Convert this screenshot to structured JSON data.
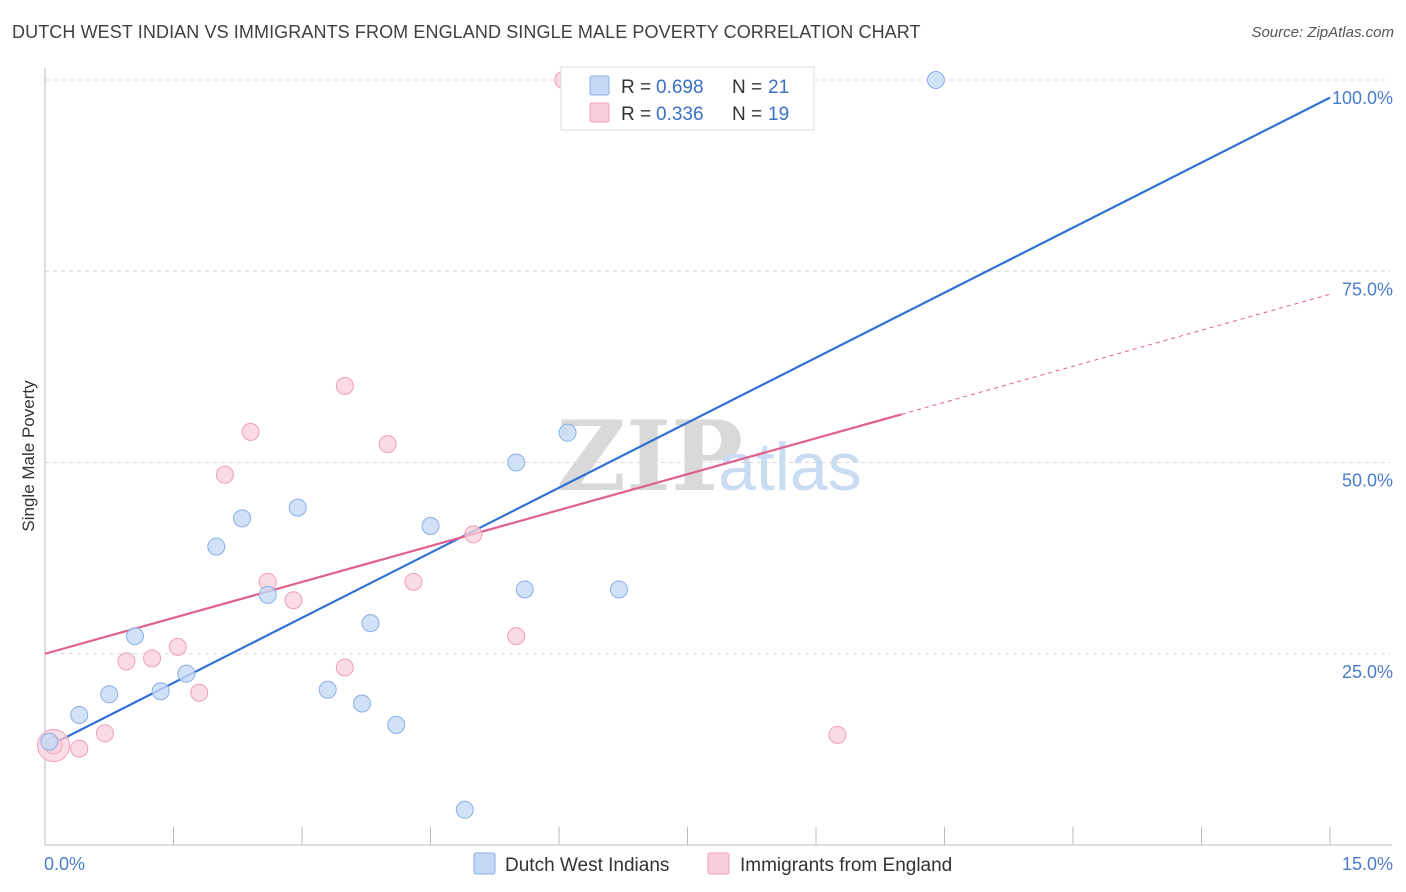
{
  "title": "DUTCH WEST INDIAN VS IMMIGRANTS FROM ENGLAND SINGLE MALE POVERTY CORRELATION CHART",
  "source": "Source: ZipAtlas.com",
  "watermark": {
    "zip": "ZIP",
    "atlas": "atlas"
  },
  "colors": {
    "blue_fill": "#c5d9f5",
    "blue_stroke": "#8ab0e6",
    "blue_line": "#2f72d1",
    "pink_fill": "#f9cfdb",
    "pink_stroke": "#ef9fb6",
    "pink_line": "#e06090",
    "grid": "#d8d8d8",
    "tick_text": "#4a7cc9"
  },
  "legend": {
    "items": [
      {
        "r_label": "R = ",
        "r_value": "0.698",
        "n_label": "N = ",
        "n_value": "21"
      },
      {
        "r_label": "R = ",
        "r_value": "0.336",
        "n_label": "N = ",
        "n_value": "19"
      }
    ]
  },
  "chart_data": {
    "type": "scatter",
    "title": "DUTCH WEST INDIAN VS IMMIGRANTS FROM ENGLAND SINGLE MALE POVERTY CORRELATION CHART",
    "xlabel": "",
    "ylabel": "Single Male Poverty",
    "xlim": [
      0,
      15
    ],
    "ylim": [
      0,
      100
    ],
    "x_tick_labels": [
      "0.0%",
      "15.0%"
    ],
    "y_ticks": [
      25,
      50,
      75,
      100
    ],
    "y_tick_labels": [
      "25.0%",
      "50.0%",
      "75.0%",
      "100.0%"
    ],
    "grid": true,
    "legend_position": "top-center",
    "series": [
      {
        "name": "Dutch West Indians",
        "color": "#8ab0e6",
        "points": [
          [
            0.05,
            13.5
          ],
          [
            0.4,
            17.0
          ],
          [
            0.75,
            19.7
          ],
          [
            1.05,
            27.3
          ],
          [
            1.35,
            20.1
          ],
          [
            1.65,
            22.4
          ],
          [
            2.0,
            39.0
          ],
          [
            2.3,
            42.7
          ],
          [
            2.6,
            32.7
          ],
          [
            2.95,
            44.1
          ],
          [
            3.3,
            20.3
          ],
          [
            3.7,
            18.5
          ],
          [
            3.8,
            29.0
          ],
          [
            4.1,
            15.7
          ],
          [
            4.5,
            41.7
          ],
          [
            4.9,
            4.6
          ],
          [
            5.5,
            50.0
          ],
          [
            5.6,
            33.4
          ],
          [
            6.1,
            53.9
          ],
          [
            6.7,
            33.4
          ],
          [
            10.4,
            100.0
          ]
        ],
        "trend": {
          "x": [
            0.0,
            15.0
          ],
          "y": [
            12.7,
            97.7
          ]
        }
      },
      {
        "name": "Immigrants from England",
        "color": "#ef9fb6",
        "points": [
          [
            0.1,
            13.0
          ],
          [
            0.4,
            12.6
          ],
          [
            0.7,
            14.6
          ],
          [
            0.95,
            24.0
          ],
          [
            1.25,
            24.4
          ],
          [
            1.55,
            25.9
          ],
          [
            1.8,
            19.9
          ],
          [
            2.1,
            48.4
          ],
          [
            2.4,
            54.0
          ],
          [
            2.6,
            34.4
          ],
          [
            2.9,
            32.0
          ],
          [
            3.5,
            60.0
          ],
          [
            3.5,
            23.2
          ],
          [
            4.0,
            52.4
          ],
          [
            4.3,
            34.4
          ],
          [
            5.0,
            40.6
          ],
          [
            5.5,
            27.3
          ],
          [
            6.05,
            100.0
          ],
          [
            9.25,
            14.4
          ]
        ],
        "trend": {
          "x": [
            0.0,
            10.0
          ],
          "y": [
            25.0,
            56.3
          ]
        },
        "trend_dashed": {
          "x": [
            10.0,
            15.0
          ],
          "y": [
            56.3,
            72.0
          ]
        }
      }
    ]
  }
}
